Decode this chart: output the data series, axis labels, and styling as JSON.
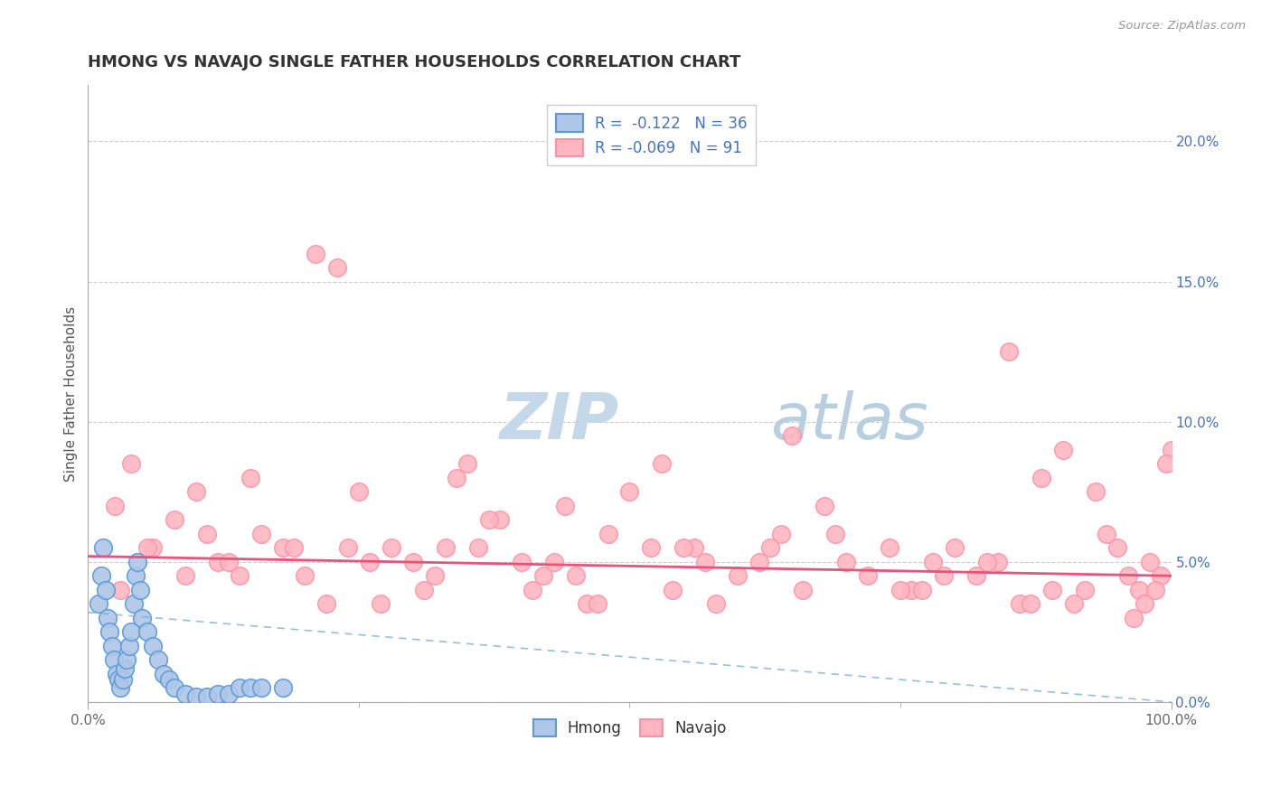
{
  "title": "HMONG VS NAVAJO SINGLE FATHER HOUSEHOLDS CORRELATION CHART",
  "source": "Source: ZipAtlas.com",
  "ylabel": "Single Father Households",
  "xlim": [
    0,
    100
  ],
  "ylim": [
    0,
    22
  ],
  "yticks": [
    0,
    5,
    10,
    15,
    20
  ],
  "ytick_labels": [
    "0.0%",
    "5.0%",
    "10.0%",
    "15.0%",
    "20.0%"
  ],
  "xtick_labels": [
    "0.0%",
    "100.0%"
  ],
  "legend_hmong": "R =  -0.122   N = 36",
  "legend_navajo": "R = -0.069   N = 91",
  "hmong_color": "#aec6e8",
  "navajo_color": "#ffb6c1",
  "hmong_edge": "#5b9bd5",
  "navajo_edge": "#ff8fa3",
  "trend_hmong_color": "#7bafd4",
  "trend_navajo_color": "#e8537a",
  "watermark_zip": "ZIP",
  "watermark_atlas": "atlas",
  "watermark_color_zip": "#c5d8ea",
  "watermark_color_atlas": "#b8cfe0",
  "grid_color": "#cccccc",
  "title_color": "#333333",
  "tick_color_y": "#4472c4",
  "tick_color_x": "#666666",
  "source_color": "#999999",
  "hmong_points_x": [
    1.0,
    1.2,
    1.4,
    1.6,
    1.8,
    2.0,
    2.2,
    2.4,
    2.6,
    2.8,
    3.0,
    3.2,
    3.4,
    3.6,
    3.8,
    4.0,
    4.2,
    4.4,
    4.6,
    4.8,
    5.0,
    5.5,
    6.0,
    6.5,
    7.0,
    7.5,
    8.0,
    9.0,
    10.0,
    11.0,
    12.0,
    13.0,
    14.0,
    15.0,
    16.0,
    18.0
  ],
  "hmong_points_y": [
    3.5,
    4.5,
    5.5,
    4.0,
    3.0,
    2.5,
    2.0,
    1.5,
    1.0,
    0.8,
    0.5,
    0.8,
    1.2,
    1.5,
    2.0,
    2.5,
    3.5,
    4.5,
    5.0,
    4.0,
    3.0,
    2.5,
    2.0,
    1.5,
    1.0,
    0.8,
    0.5,
    0.3,
    0.2,
    0.2,
    0.3,
    0.3,
    0.5,
    0.5,
    0.5,
    0.5
  ],
  "navajo_points_x": [
    2.5,
    4.0,
    6.0,
    8.0,
    10.0,
    12.0,
    14.0,
    16.0,
    18.0,
    20.0,
    22.0,
    24.0,
    26.0,
    28.0,
    30.0,
    32.0,
    34.0,
    36.0,
    38.0,
    40.0,
    42.0,
    44.0,
    46.0,
    48.0,
    50.0,
    52.0,
    54.0,
    56.0,
    58.0,
    60.0,
    62.0,
    64.0,
    66.0,
    68.0,
    70.0,
    72.0,
    74.0,
    76.0,
    78.0,
    80.0,
    82.0,
    84.0,
    86.0,
    88.0,
    90.0,
    92.0,
    94.0,
    96.0,
    97.0,
    98.0,
    99.0,
    100.0,
    3.0,
    5.5,
    9.0,
    11.0,
    15.0,
    19.0,
    23.0,
    25.0,
    27.0,
    31.0,
    33.0,
    37.0,
    41.0,
    47.0,
    53.0,
    57.0,
    63.0,
    69.0,
    75.0,
    79.0,
    83.0,
    85.0,
    89.0,
    91.0,
    93.0,
    95.0,
    97.5,
    98.5,
    99.5,
    13.0,
    35.0,
    45.0,
    55.0,
    65.0,
    77.0,
    87.0,
    96.5,
    21.0,
    43.0
  ],
  "navajo_points_y": [
    7.0,
    8.5,
    5.5,
    6.5,
    7.5,
    5.0,
    4.5,
    6.0,
    5.5,
    4.5,
    3.5,
    5.5,
    5.0,
    5.5,
    5.0,
    4.5,
    8.0,
    5.5,
    6.5,
    5.0,
    4.5,
    7.0,
    3.5,
    6.0,
    7.5,
    5.5,
    4.0,
    5.5,
    3.5,
    4.5,
    5.0,
    6.0,
    4.0,
    7.0,
    5.0,
    4.5,
    5.5,
    4.0,
    5.0,
    5.5,
    4.5,
    5.0,
    3.5,
    8.0,
    9.0,
    4.0,
    6.0,
    4.5,
    4.0,
    5.0,
    4.5,
    9.0,
    4.0,
    5.5,
    4.5,
    6.0,
    8.0,
    5.5,
    15.5,
    7.5,
    3.5,
    4.0,
    5.5,
    6.5,
    4.0,
    3.5,
    8.5,
    5.0,
    5.5,
    6.0,
    4.0,
    4.5,
    5.0,
    12.5,
    4.0,
    3.5,
    7.5,
    5.5,
    3.5,
    4.0,
    8.5,
    5.0,
    8.5,
    4.5,
    5.5,
    9.5,
    4.0,
    3.5,
    3.0,
    16.0,
    5.0
  ]
}
